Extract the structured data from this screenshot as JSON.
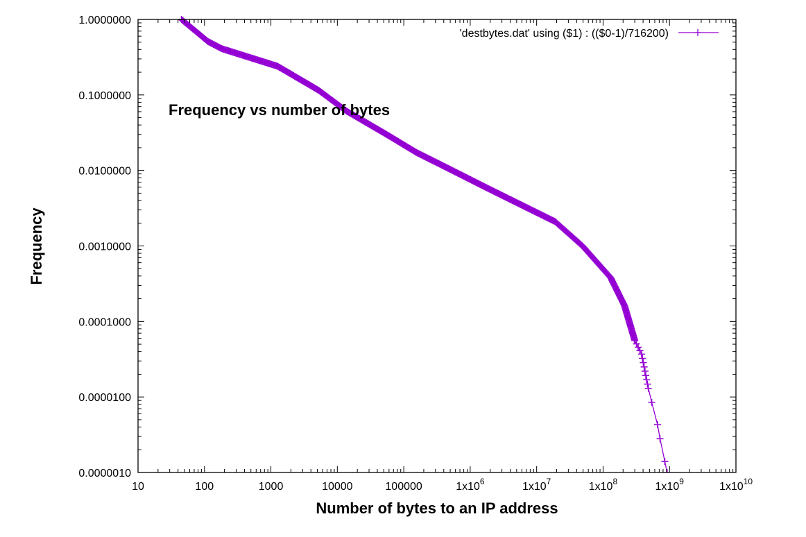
{
  "chart_data": {
    "type": "line",
    "title": "",
    "annotation": "Frequency vs number of bytes",
    "xlabel": "Number of bytes to an IP address",
    "ylabel": "Frequency",
    "xscale": "log",
    "yscale": "log",
    "xlim": [
      10,
      10000000000
    ],
    "ylim": [
      1e-06,
      1
    ],
    "grid": false,
    "legend_position": "top-right",
    "x_ticks": [
      {
        "value": 10,
        "base": "10",
        "exp": ""
      },
      {
        "value": 100,
        "base": "100",
        "exp": ""
      },
      {
        "value": 1000,
        "base": "1000",
        "exp": ""
      },
      {
        "value": 10000,
        "base": "10000",
        "exp": ""
      },
      {
        "value": 100000,
        "base": "100000",
        "exp": ""
      },
      {
        "value": 1000000,
        "base": "1x10",
        "exp": "6"
      },
      {
        "value": 10000000,
        "base": "1x10",
        "exp": "7"
      },
      {
        "value": 100000000,
        "base": "1x10",
        "exp": "8"
      },
      {
        "value": 1000000000,
        "base": "1x10",
        "exp": "9"
      },
      {
        "value": 10000000000,
        "base": "1x10",
        "exp": "10"
      }
    ],
    "y_ticks": [
      {
        "value": 1,
        "label": "1.0000000"
      },
      {
        "value": 0.1,
        "label": "0.1000000"
      },
      {
        "value": 0.01,
        "label": "0.0100000"
      },
      {
        "value": 0.001,
        "label": "0.0010000"
      },
      {
        "value": 0.0001,
        "label": "0.0001000"
      },
      {
        "value": 1e-05,
        "label": "0.0000100"
      },
      {
        "value": 1e-06,
        "label": "0.0000010"
      }
    ],
    "series": [
      {
        "name": "'destbytes.dat' using ($1) : (($0-1)/716200)",
        "color": "#9400d3",
        "marker": "plus",
        "x": [
          45,
          113,
          182,
          1260,
          5250,
          13800,
          58700,
          155000,
          515000,
          1700000,
          7200000,
          19000000,
          49000000,
          130000000,
          210000000,
          300000000,
          380000000,
          480000000,
          540000000,
          660000000,
          720000000,
          850000000,
          920000000
        ],
        "y": [
          1.0,
          0.51,
          0.41,
          0.24,
          0.115,
          0.061,
          0.029,
          0.0173,
          0.0102,
          0.006,
          0.0032,
          0.0021,
          0.001,
          0.00038,
          0.000162,
          5.6e-05,
          3.7e-05,
          1.3e-05,
          8.5e-06,
          4.3e-06,
          2.8e-06,
          1.4e-06,
          1e-06
        ]
      }
    ]
  }
}
